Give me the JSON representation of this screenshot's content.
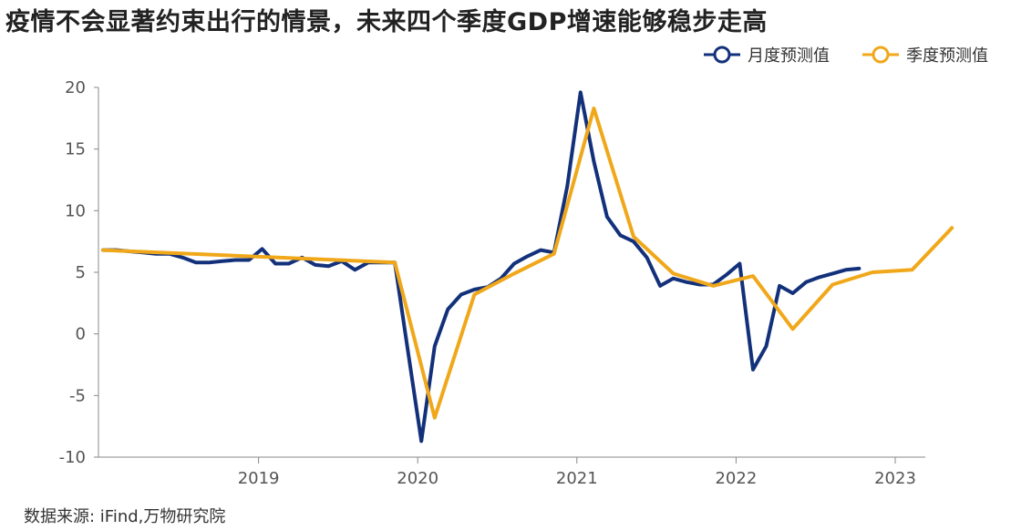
{
  "title": "疫情不会显著约束出行的情景，未来四个季度GDP增速能够稳步走高",
  "source": "数据来源: iFind,万物研究院",
  "colors": {
    "monthly": "#13317a",
    "quarterly": "#f0a81a",
    "axis": "#888888"
  },
  "chart_data": {
    "type": "line",
    "ylim": [
      -10,
      20
    ],
    "yticks": [
      -10,
      -5,
      0,
      5,
      10,
      15,
      20
    ],
    "xlim": [
      "2018-01",
      "2023-06"
    ],
    "xticks": [
      "2019",
      "2020",
      "2021",
      "2022",
      "2023"
    ],
    "legend_position": "top-right",
    "grid": false,
    "series": [
      {
        "name": "月度预测值",
        "x": [
          "2018-01",
          "2018-02",
          "2018-03",
          "2018-04",
          "2018-05",
          "2018-06",
          "2018-07",
          "2018-08",
          "2018-09",
          "2018-10",
          "2018-11",
          "2018-12",
          "2019-01",
          "2019-02",
          "2019-03",
          "2019-04",
          "2019-05",
          "2019-06",
          "2019-07",
          "2019-08",
          "2019-09",
          "2019-10",
          "2019-11",
          "2019-12",
          "2020-01",
          "2020-02",
          "2020-03",
          "2020-04",
          "2020-05",
          "2020-06",
          "2020-07",
          "2020-08",
          "2020-09",
          "2020-10",
          "2020-11",
          "2020-12",
          "2021-01",
          "2021-02",
          "2021-03",
          "2021-04",
          "2021-05",
          "2021-06",
          "2021-07",
          "2021-08",
          "2021-09",
          "2021-10",
          "2021-11",
          "2021-12",
          "2022-01",
          "2022-02",
          "2022-03",
          "2022-04",
          "2022-05",
          "2022-06",
          "2022-07",
          "2022-08",
          "2022-09",
          "2022-10"
        ],
        "values": [
          6.8,
          6.8,
          6.7,
          6.6,
          6.5,
          6.5,
          6.2,
          5.8,
          5.8,
          5.9,
          6.0,
          6.0,
          6.9,
          5.7,
          5.7,
          6.2,
          5.6,
          5.5,
          5.9,
          5.2,
          5.8,
          5.8,
          5.8,
          -1.5,
          -8.7,
          -1.0,
          2.0,
          3.2,
          3.6,
          3.8,
          4.5,
          5.7,
          6.3,
          6.8,
          6.6,
          12.0,
          19.6,
          14.0,
          9.5,
          8.0,
          7.5,
          6.2,
          3.9,
          4.5,
          4.2,
          4.0,
          4.0,
          4.8,
          5.7,
          -2.9,
          -1.0,
          3.9,
          3.3,
          4.2,
          4.6,
          4.9,
          5.2,
          5.3
        ]
      },
      {
        "name": "季度预测值",
        "x": [
          "2018-01",
          "2019-11",
          "2020-02",
          "2020-05",
          "2020-08",
          "2020-11",
          "2021-02",
          "2021-05",
          "2021-08",
          "2021-11",
          "2022-02",
          "2022-05",
          "2022-08",
          "2022-11",
          "2023-02",
          "2023-05"
        ],
        "values": [
          6.8,
          5.8,
          -6.8,
          3.2,
          4.9,
          6.5,
          18.3,
          7.9,
          4.9,
          3.9,
          4.7,
          0.4,
          4.0,
          5.0,
          5.2,
          8.6
        ]
      }
    ]
  }
}
